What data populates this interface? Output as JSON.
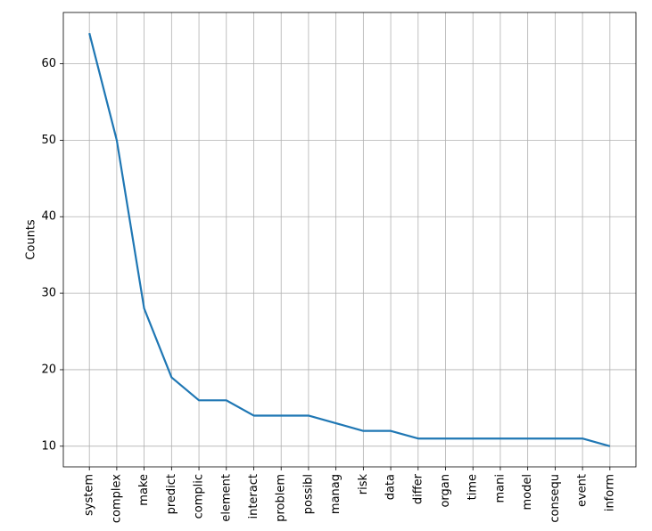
{
  "chart_data": {
    "type": "line",
    "ylabel": "Counts",
    "categories": [
      "system",
      "complex",
      "make",
      "predict",
      "complic",
      "element",
      "interact",
      "problem",
      "possibl",
      "manag",
      "risk",
      "data",
      "differ",
      "organ",
      "time",
      "mani",
      "model",
      "consequ",
      "event",
      "inform"
    ],
    "values": [
      64,
      50,
      28,
      19,
      16,
      16,
      14,
      14,
      14,
      13,
      12,
      12,
      11,
      11,
      11,
      11,
      11,
      11,
      11,
      10
    ],
    "color": "#1f77b4",
    "ylim": [
      7.3,
      66.7
    ],
    "yticks": [
      10,
      20,
      30,
      40,
      50,
      60
    ],
    "grid": true
  }
}
